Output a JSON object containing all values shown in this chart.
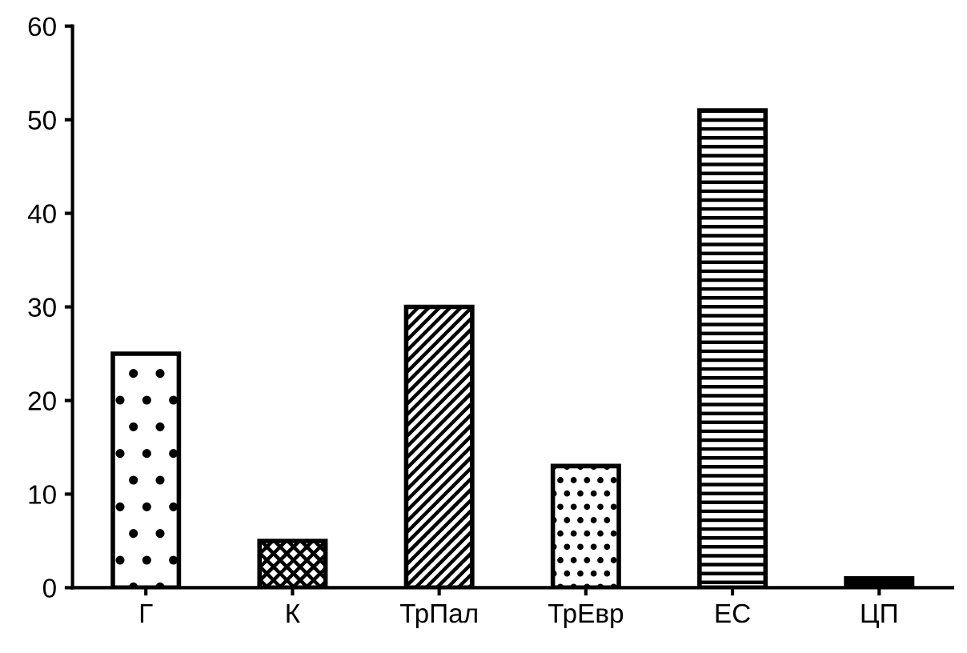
{
  "chart_data": {
    "type": "bar",
    "categories": [
      "Г",
      "К",
      "ТрПал",
      "ТрЕвр",
      "ЕС",
      "ЦП"
    ],
    "values": [
      25,
      5,
      30,
      13,
      51,
      1
    ],
    "colors": [
      "#000000",
      "#000000",
      "#000000",
      "#000000",
      "#000000",
      "#000000"
    ],
    "ylim": [
      0,
      60
    ],
    "yticks": [
      0,
      10,
      20,
      30,
      40,
      50,
      60
    ],
    "grid": false,
    "legend": false
  }
}
